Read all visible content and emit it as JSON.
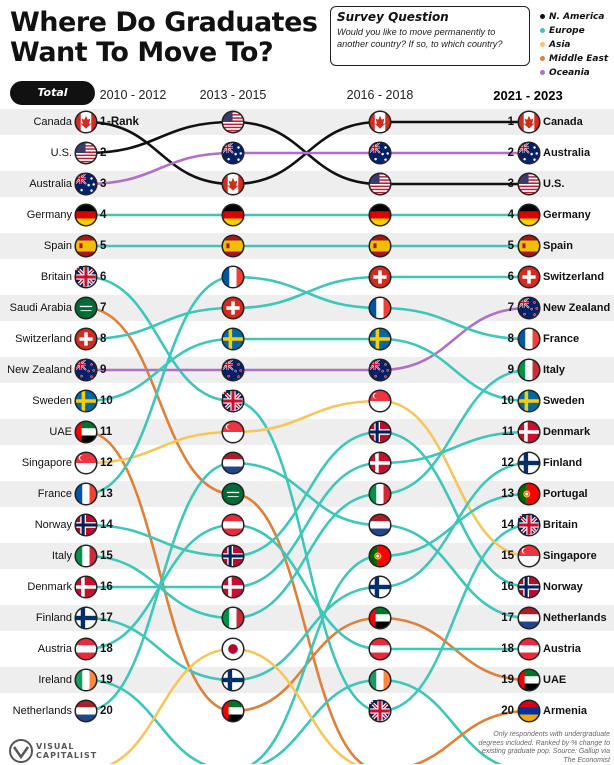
{
  "title": "Where Do Graduates Want To Move To?",
  "survey": {
    "heading": "Survey Question",
    "text": "Would you like to move permanently to another country? If so, to which country?"
  },
  "legend": [
    {
      "label": "N. America",
      "color": "#111111"
    },
    {
      "label": "Europe",
      "color": "#3cc7b8"
    },
    {
      "label": "Asia",
      "color": "#f6c659"
    },
    {
      "label": "Middle East",
      "color": "#e07f38"
    },
    {
      "label": "Oceania",
      "color": "#b070c8"
    }
  ],
  "total_label": "Total",
  "rank_marker": "Rank",
  "footnote": "Only respondents with undergraduate degrees included. Ranked by % change to existing graduate pop. Source: Gallup via The Economist",
  "brand": "VISUAL\nCAPITALIST",
  "chart_data": {
    "type": "table",
    "title": "Where Do Graduates Want To Move To?",
    "periods": [
      "2010 - 2012",
      "2013 - 2015",
      "2016 - 2018",
      "2021 - 2023"
    ],
    "rank_range": [
      1,
      20
    ],
    "countries": [
      {
        "name": "Canada",
        "region": "N. America",
        "flag": "canada-flag",
        "ranks": [
          1,
          3,
          1,
          1
        ]
      },
      {
        "name": "U.S.",
        "region": "N. America",
        "flag": "us-flag",
        "ranks": [
          2,
          1,
          3,
          3
        ]
      },
      {
        "name": "Australia",
        "region": "Oceania",
        "flag": "australia-flag",
        "ranks": [
          3,
          2,
          2,
          2
        ]
      },
      {
        "name": "Germany",
        "region": "Europe",
        "flag": "germany-flag",
        "ranks": [
          4,
          4,
          4,
          4
        ]
      },
      {
        "name": "Spain",
        "region": "Europe",
        "flag": "spain-flag",
        "ranks": [
          5,
          5,
          5,
          5
        ]
      },
      {
        "name": "Britain",
        "region": "Europe",
        "flag": "britain-flag",
        "ranks": [
          6,
          10,
          20,
          14
        ]
      },
      {
        "name": "Saudi Arabia",
        "region": "Middle East",
        "flag": "saudi-arabia-flag",
        "ranks": [
          7,
          13,
          null,
          null
        ]
      },
      {
        "name": "Switzerland",
        "region": "Europe",
        "flag": "switzerland-flag",
        "ranks": [
          8,
          7,
          6,
          6
        ]
      },
      {
        "name": "New Zealand",
        "region": "Oceania",
        "flag": "new-zealand-flag",
        "ranks": [
          9,
          9,
          9,
          7
        ]
      },
      {
        "name": "Sweden",
        "region": "Europe",
        "flag": "sweden-flag",
        "ranks": [
          10,
          8,
          8,
          10
        ]
      },
      {
        "name": "UAE",
        "region": "Middle East",
        "flag": "uae-flag",
        "ranks": [
          11,
          20,
          17,
          19
        ]
      },
      {
        "name": "Singapore",
        "region": "Asia",
        "flag": "singapore-flag",
        "ranks": [
          12,
          11,
          10,
          15
        ]
      },
      {
        "name": "France",
        "region": "Europe",
        "flag": "france-flag",
        "ranks": [
          13,
          6,
          7,
          8
        ]
      },
      {
        "name": "Norway",
        "region": "Europe",
        "flag": "norway-flag",
        "ranks": [
          14,
          15,
          11,
          16
        ]
      },
      {
        "name": "Italy",
        "region": "Europe",
        "flag": "italy-flag",
        "ranks": [
          15,
          17,
          13,
          9
        ]
      },
      {
        "name": "Denmark",
        "region": "Europe",
        "flag": "denmark-flag",
        "ranks": [
          16,
          16,
          12,
          11
        ]
      },
      {
        "name": "Finland",
        "region": "Europe",
        "flag": "finland-flag",
        "ranks": [
          17,
          19,
          16,
          12
        ]
      },
      {
        "name": "Austria",
        "region": "Europe",
        "flag": "austria-flag",
        "ranks": [
          18,
          14,
          18,
          18
        ]
      },
      {
        "name": "Ireland",
        "region": "Europe",
        "flag": "ireland-flag",
        "ranks": [
          19,
          null,
          19,
          null
        ]
      },
      {
        "name": "Netherlands",
        "region": "Europe",
        "flag": "netherlands-flag",
        "ranks": [
          20,
          12,
          14,
          17
        ]
      },
      {
        "name": "Portugal",
        "region": "Europe",
        "flag": "portugal-flag",
        "ranks": [
          null,
          null,
          15,
          13
        ]
      },
      {
        "name": "Japan",
        "region": "Asia",
        "flag": "japan-flag",
        "ranks": [
          null,
          18,
          null,
          null
        ]
      },
      {
        "name": "Armenia",
        "region": "Middle East",
        "flag": "armenia-flag",
        "ranks": [
          null,
          null,
          null,
          20
        ]
      }
    ]
  }
}
